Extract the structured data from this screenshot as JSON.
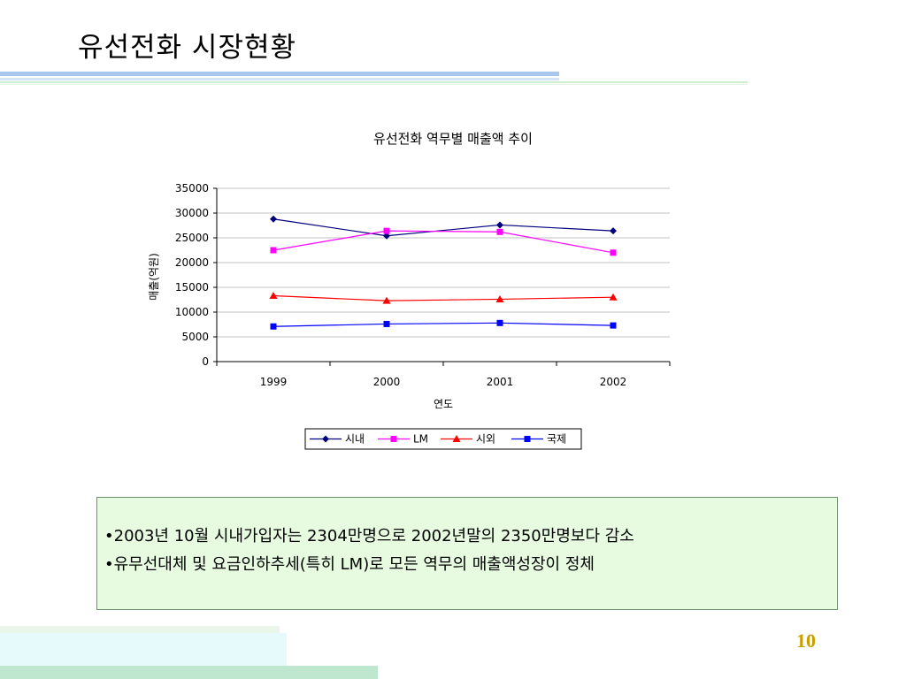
{
  "slide": {
    "title": "유선전화 시장현황",
    "page_number": "10",
    "notes": [
      "•2003년 10월 시내가입자는 2304만명으로 2002년말의 2350만명보다 감소",
      "•유무선대체 및 요금인하추세(특히 LM)로 모든 역무의 매출액성장이 정체"
    ]
  },
  "chart_data": {
    "type": "line",
    "title": "유선전화 역무별 매출액 추이",
    "xlabel": "연도",
    "ylabel": "매출(억원)",
    "categories": [
      "1999",
      "2000",
      "2001",
      "2002"
    ],
    "ylim": [
      0,
      35000
    ],
    "yticks": [
      0,
      5000,
      10000,
      15000,
      20000,
      25000,
      30000,
      35000
    ],
    "grid": true,
    "legend_position": "bottom",
    "series": [
      {
        "name": "시내",
        "values": [
          28800,
          25400,
          27600,
          26400
        ],
        "color": "#000080",
        "marker": "diamond"
      },
      {
        "name": "LM",
        "values": [
          22500,
          26400,
          26200,
          22000
        ],
        "color": "#ff00ff",
        "marker": "square"
      },
      {
        "name": "시외",
        "values": [
          13300,
          12300,
          12600,
          13000
        ],
        "color": "#ff0000",
        "marker": "triangle"
      },
      {
        "name": "국제",
        "values": [
          7100,
          7600,
          7800,
          7300
        ],
        "color": "#0000ff",
        "marker": "square"
      }
    ]
  }
}
